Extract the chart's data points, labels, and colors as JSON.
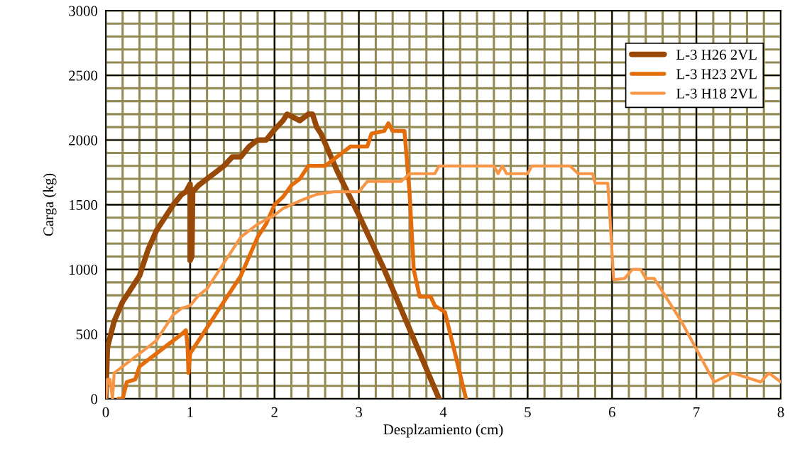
{
  "chart_data": {
    "type": "line",
    "xlabel": "Desplzamiento (cm)",
    "ylabel": "Carga (kg)",
    "xlim": [
      0,
      8
    ],
    "xticks": [
      0,
      1,
      2,
      3,
      4,
      5,
      6,
      7,
      8
    ],
    "ylim": [
      0,
      3000
    ],
    "yticks": [
      0,
      500,
      1000,
      1500,
      2000,
      2500,
      3000
    ],
    "grid": true,
    "legend": "top right",
    "marker": "none",
    "line_style": "solid",
    "series": [
      {
        "name": "L-3 H26 2VL",
        "color": "#984807",
        "x": [
          0,
          0.02,
          0.1,
          0.2,
          0.3,
          0.4,
          0.5,
          0.6,
          0.7,
          0.8,
          0.9,
          0.95,
          1.0,
          1.0,
          1.02,
          1.03,
          1.1,
          1.2,
          1.3,
          1.4,
          1.5,
          1.6,
          1.7,
          1.8,
          1.9,
          2.0,
          2.1,
          2.15,
          2.3,
          2.4,
          2.45,
          2.5,
          2.55,
          2.75,
          3.0,
          3.3,
          3.6,
          3.95
        ],
        "values": [
          0,
          400,
          600,
          750,
          850,
          950,
          1150,
          1300,
          1400,
          1500,
          1580,
          1600,
          1660,
          1070,
          1100,
          1600,
          1650,
          1700,
          1750,
          1800,
          1870,
          1870,
          1950,
          2000,
          2000,
          2080,
          2150,
          2200,
          2150,
          2200,
          2200,
          2100,
          2050,
          1750,
          1420,
          1000,
          540,
          0
        ]
      },
      {
        "name": "L-3 H23 2VL",
        "color": "#e46c0a",
        "x": [
          0.15,
          0.2,
          0.25,
          0.35,
          0.4,
          0.5,
          0.6,
          0.7,
          0.8,
          0.9,
          0.95,
          0.97,
          0.98,
          1.0,
          1.05,
          1.1,
          1.2,
          1.3,
          1.4,
          1.5,
          1.6,
          1.7,
          1.8,
          1.9,
          2.0,
          2.1,
          2.2,
          2.3,
          2.4,
          2.6,
          2.7,
          2.8,
          2.9,
          3.1,
          3.15,
          3.3,
          3.35,
          3.4,
          3.54,
          3.6,
          3.65,
          3.72,
          3.85,
          3.9,
          4.02,
          4.27
        ],
        "values": [
          0,
          0,
          130,
          150,
          250,
          300,
          350,
          400,
          450,
          500,
          530,
          400,
          200,
          350,
          400,
          450,
          550,
          650,
          750,
          850,
          950,
          1100,
          1250,
          1350,
          1500,
          1560,
          1650,
          1700,
          1800,
          1800,
          1850,
          1900,
          1950,
          1950,
          2050,
          2070,
          2130,
          2070,
          2070,
          1600,
          1000,
          790,
          790,
          720,
          670,
          0
        ]
      },
      {
        "name": "L-3 H18 2VL",
        "color": "#f79646",
        "x": [
          0,
          0.02,
          0.05,
          0.08,
          0.1,
          0.2,
          0.3,
          0.4,
          0.5,
          0.6,
          0.7,
          0.8,
          0.9,
          1.0,
          1.1,
          1.2,
          1.3,
          1.4,
          1.5,
          1.6,
          1.7,
          1.8,
          2.0,
          2.1,
          2.3,
          2.5,
          2.7,
          3.0,
          3.1,
          3.5,
          3.6,
          3.9,
          3.95,
          4.6,
          4.65,
          4.7,
          4.75,
          5.0,
          5.05,
          5.5,
          5.6,
          5.77,
          5.8,
          5.95,
          6.02,
          6.15,
          6.24,
          6.34,
          6.4,
          6.5,
          6.82,
          7.21,
          7.43,
          7.76,
          7.86,
          8.0
        ],
        "values": [
          0,
          150,
          150,
          0,
          200,
          250,
          300,
          350,
          400,
          450,
          550,
          650,
          700,
          720,
          800,
          850,
          950,
          1050,
          1150,
          1250,
          1300,
          1350,
          1420,
          1470,
          1530,
          1580,
          1600,
          1600,
          1680,
          1680,
          1740,
          1740,
          1800,
          1800,
          1740,
          1800,
          1740,
          1740,
          1800,
          1800,
          1740,
          1740,
          1667,
          1667,
          920,
          930,
          1000,
          1000,
          930,
          930,
          600,
          130,
          200,
          130,
          200,
          130
        ]
      }
    ]
  }
}
